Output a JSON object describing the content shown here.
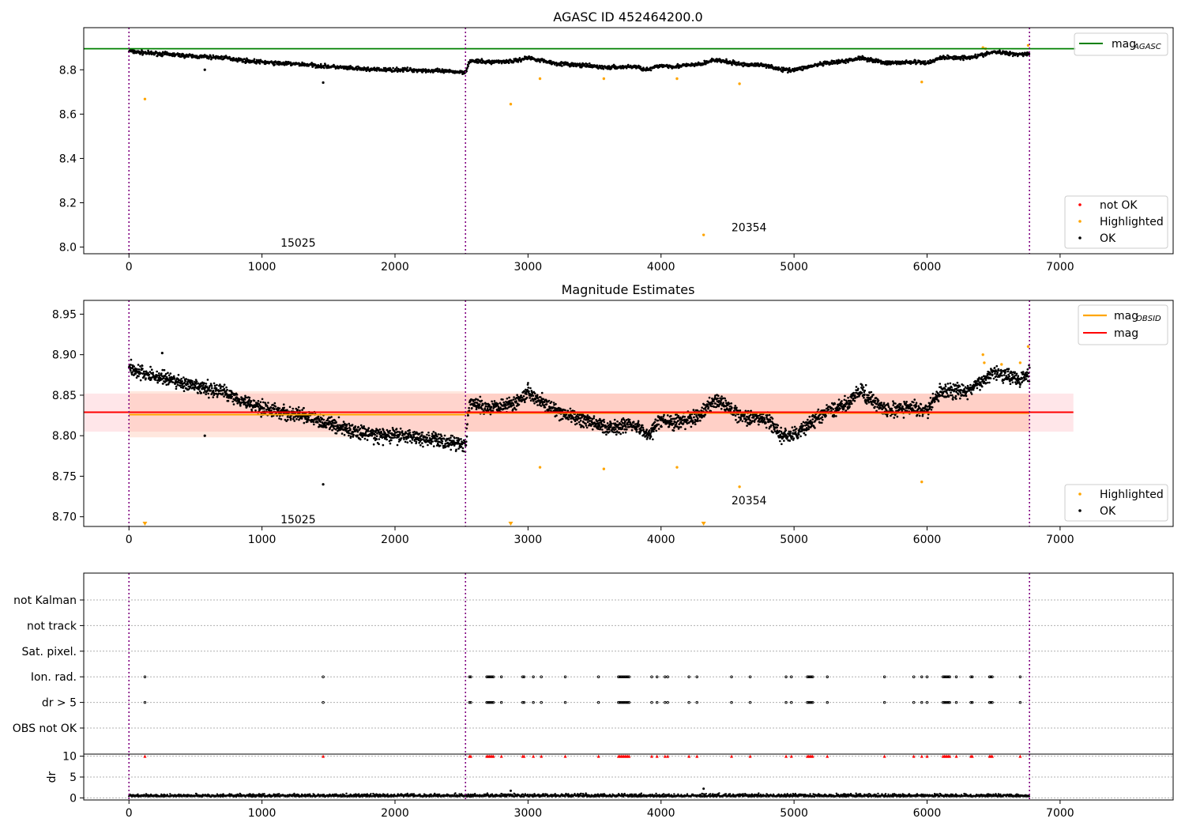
{
  "figure": {
    "title": "AGASC ID 452464200.0",
    "colors": {
      "ok": "#000000",
      "highlighted": "#ffa500",
      "not_ok": "#ff0000",
      "agasc_line": "#008000",
      "mag_line": "#ff0000",
      "obsid_line": "#ffa500",
      "boundary": "#800080"
    }
  },
  "chart_data": [
    {
      "type": "scatter",
      "title": "AGASC ID 452464200.0",
      "xlim": [
        -340,
        7850
      ],
      "ylim": [
        7.97,
        8.99
      ],
      "xticks": [
        "0",
        "1000",
        "2000",
        "3000",
        "4000",
        "5000",
        "6000",
        "7000"
      ],
      "yticks": [
        "8.0",
        "8.2",
        "8.4",
        "8.6",
        "8.8"
      ],
      "obs_boundaries": [
        0,
        2530,
        6770
      ],
      "annotations": [
        {
          "text": "15025",
          "x": 1270,
          "y": 8.02
        },
        {
          "text": "20354",
          "x": 4660,
          "y": 8.09
        }
      ],
      "hline": {
        "name": "mag_{AGASC}",
        "y": 8.895,
        "color": "#008000"
      },
      "legend_upper": {
        "placement": "upper right",
        "entries": [
          "mag",
          "AGASC"
        ]
      },
      "legend_lower": {
        "placement": "lower right",
        "entries": [
          "not OK",
          "Highlighted",
          "OK"
        ]
      },
      "series": [
        {
          "name": "OK",
          "trend_x": [
            0,
            50,
            150,
            300,
            500,
            700,
            900,
            1100,
            1300,
            1500,
            1700,
            1900,
            2100,
            2300,
            2500,
            2530,
            2560,
            2700,
            2900,
            3000,
            3200,
            3400,
            3600,
            3800,
            3900,
            4000,
            4100,
            4300,
            4400,
            4600,
            4800,
            4900,
            5000,
            5200,
            5400,
            5500,
            5700,
            5900,
            6000,
            6100,
            6300,
            6400,
            6500,
            6700,
            6770
          ],
          "trend_y": [
            8.885,
            8.88,
            8.875,
            8.87,
            8.86,
            8.855,
            8.84,
            8.83,
            8.825,
            8.815,
            8.805,
            8.8,
            8.8,
            8.795,
            8.79,
            8.79,
            8.84,
            8.835,
            8.84,
            8.855,
            8.83,
            8.82,
            8.81,
            8.815,
            8.8,
            8.82,
            8.815,
            8.825,
            8.845,
            8.825,
            8.82,
            8.8,
            8.8,
            8.825,
            8.84,
            8.855,
            8.83,
            8.835,
            8.83,
            8.855,
            8.855,
            8.865,
            8.88,
            8.87,
            8.875
          ],
          "scatter": 0.008,
          "outliers": [
            {
              "x": 570,
              "y": 8.8
            },
            {
              "x": 1460,
              "y": 8.742
            }
          ]
        },
        {
          "name": "Highlighted",
          "points": [
            {
              "x": 120,
              "y": 8.668
            },
            {
              "x": 2870,
              "y": 8.645
            },
            {
              "x": 3090,
              "y": 8.76
            },
            {
              "x": 3570,
              "y": 8.76
            },
            {
              "x": 4120,
              "y": 8.76
            },
            {
              "x": 4320,
              "y": 8.055
            },
            {
              "x": 4590,
              "y": 8.737
            },
            {
              "x": 5960,
              "y": 8.745
            },
            {
              "x": 6420,
              "y": 8.9
            },
            {
              "x": 6440,
              "y": 8.895
            },
            {
              "x": 6760,
              "y": 8.91
            }
          ]
        }
      ]
    },
    {
      "type": "scatter",
      "title": "Magnitude Estimates",
      "xlim": [
        -340,
        7850
      ],
      "ylim": [
        8.688,
        8.967
      ],
      "xticks": [
        "0",
        "1000",
        "2000",
        "3000",
        "4000",
        "5000",
        "6000",
        "7000"
      ],
      "yticks": [
        "8.70",
        "8.75",
        "8.80",
        "8.85",
        "8.90",
        "8.95"
      ],
      "obs_boundaries": [
        0,
        2530,
        6770
      ],
      "annotations": [
        {
          "text": "15025",
          "x": 1270,
          "y": 8.697
        },
        {
          "text": "20354",
          "x": 4660,
          "y": 8.72
        }
      ],
      "bands": [
        {
          "x": [
            -340,
            7100
          ],
          "y": [
            8.805,
            8.852
          ],
          "color": "#ffb6c1",
          "alpha": 0.35
        },
        {
          "x": [
            0,
            2530
          ],
          "y": [
            8.798,
            8.855
          ],
          "color": "#ffa07a",
          "alpha": 0.25
        },
        {
          "x": [
            2530,
            6770
          ],
          "y": [
            8.805,
            8.852
          ],
          "color": "#ffa07a",
          "alpha": 0.3
        }
      ],
      "lines": [
        {
          "name": "mag_{OBSID}",
          "color": "#ffa500",
          "segments": [
            {
              "x": [
                0,
                2530
              ],
              "y": 8.826
            },
            {
              "x": [
                2530,
                6770
              ],
              "y": 8.828
            }
          ]
        },
        {
          "name": "mag",
          "color": "#ff0000",
          "segments": [
            {
              "x": [
                -340,
                7100
              ],
              "y": 8.829
            }
          ]
        }
      ],
      "legend_upper": {
        "placement": "upper right",
        "entries": [
          "mag",
          "OBSID",
          "mag"
        ]
      },
      "legend_lower": {
        "placement": "lower right",
        "entries": [
          "Highlighted",
          "OK"
        ]
      },
      "series": [
        {
          "name": "OK",
          "trend_x": [
            0,
            50,
            150,
            300,
            500,
            700,
            900,
            1100,
            1300,
            1500,
            1700,
            1900,
            2100,
            2300,
            2500,
            2530,
            2560,
            2700,
            2900,
            3000,
            3200,
            3400,
            3600,
            3800,
            3900,
            4000,
            4100,
            4300,
            4400,
            4600,
            4800,
            4900,
            5000,
            5200,
            5400,
            5500,
            5700,
            5900,
            6000,
            6100,
            6300,
            6400,
            6500,
            6700,
            6770
          ],
          "trend_y": [
            8.885,
            8.88,
            8.875,
            8.87,
            8.86,
            8.855,
            8.84,
            8.83,
            8.825,
            8.815,
            8.805,
            8.8,
            8.8,
            8.795,
            8.79,
            8.79,
            8.84,
            8.835,
            8.84,
            8.855,
            8.83,
            8.82,
            8.81,
            8.815,
            8.8,
            8.82,
            8.815,
            8.825,
            8.845,
            8.825,
            8.82,
            8.8,
            8.8,
            8.825,
            8.84,
            8.855,
            8.83,
            8.835,
            8.83,
            8.855,
            8.855,
            8.865,
            8.88,
            8.87,
            8.875
          ],
          "scatter": 0.008,
          "outliers": [
            {
              "x": 570,
              "y": 8.8
            },
            {
              "x": 1460,
              "y": 8.74
            },
            {
              "x": 250,
              "y": 8.902
            }
          ]
        },
        {
          "name": "Highlighted",
          "points": [
            {
              "x": 3090,
              "y": 8.761
            },
            {
              "x": 3570,
              "y": 8.759
            },
            {
              "x": 4120,
              "y": 8.761
            },
            {
              "x": 4590,
              "y": 8.737
            },
            {
              "x": 5960,
              "y": 8.743
            },
            {
              "x": 6420,
              "y": 8.9
            },
            {
              "x": 6430,
              "y": 8.89
            },
            {
              "x": 6560,
              "y": 8.888
            },
            {
              "x": 6700,
              "y": 8.89
            },
            {
              "x": 6760,
              "y": 8.91
            }
          ],
          "offscale": [
            {
              "x": 120
            },
            {
              "x": 2870
            },
            {
              "x": 4320
            }
          ]
        }
      ]
    },
    {
      "type": "scatter",
      "title": "",
      "xlim": [
        -340,
        7850
      ],
      "categories": [
        "OBS not OK",
        "dr > 5",
        "Ion. rad.",
        "Sat. pixel.",
        "not track",
        "not Kalman"
      ],
      "flag_x": [
        120,
        1460,
        2560,
        2570,
        2690,
        2700,
        2710,
        2720,
        2730,
        2740,
        2800,
        2960,
        2970,
        3040,
        3100,
        3280,
        3530,
        3680,
        3690,
        3700,
        3710,
        3720,
        3730,
        3740,
        3750,
        3760,
        3930,
        3970,
        4030,
        4050,
        4210,
        4270,
        4530,
        4670,
        4940,
        4980,
        5100,
        5110,
        5120,
        5130,
        5140,
        5250,
        5680,
        5900,
        5960,
        6000,
        6120,
        6130,
        6140,
        6150,
        6160,
        6170,
        6220,
        6330,
        6340,
        6470,
        6480,
        6490,
        6700
      ],
      "flags": {
        "Ion. rad.": "flag_x",
        "dr > 5": "flag_x"
      },
      "obs_boundaries": [
        0,
        2530,
        6770
      ]
    },
    {
      "type": "scatter",
      "title": "",
      "xlim": [
        -340,
        7850
      ],
      "ylim": [
        -0.5,
        10.5
      ],
      "xticks": [
        "0",
        "1000",
        "2000",
        "3000",
        "4000",
        "5000",
        "6000",
        "7000"
      ],
      "yticks": [
        "0",
        "5",
        "10"
      ],
      "ylabel": "dr",
      "obs_boundaries": [
        0,
        2530,
        6770
      ],
      "baseline": {
        "y": 0.3,
        "scatter": 0.3
      },
      "outliers": [
        {
          "x": 2870,
          "y": 1.7
        },
        {
          "x": 4320,
          "y": 2.2
        }
      ],
      "clipped_marker": {
        "y": 10,
        "color": "#ff0000",
        "x_source": "flag_x"
      }
    }
  ]
}
